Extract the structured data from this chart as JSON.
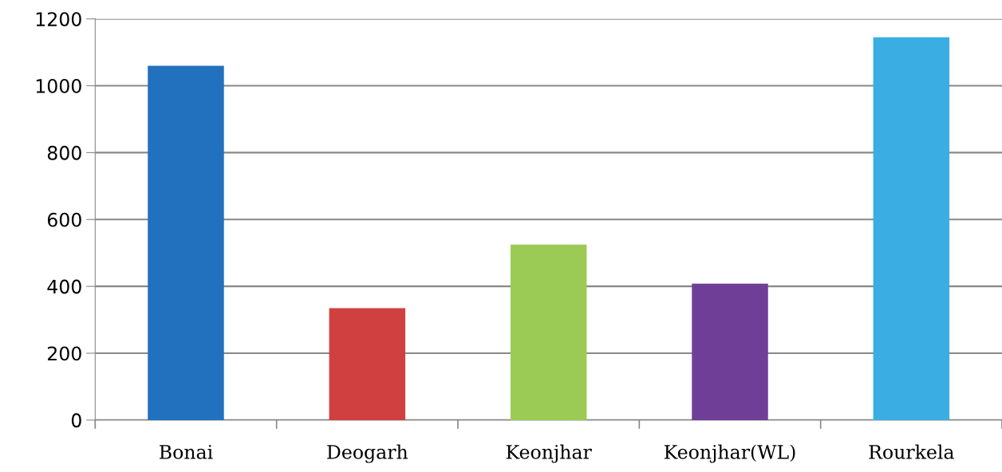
{
  "chart_data": {
    "type": "bar",
    "categories": [
      "Bonai",
      "Deogarh",
      "Keonjhar",
      "Keonjhar(WL)",
      "Rourkela"
    ],
    "values": [
      1060,
      335,
      525,
      408,
      1145
    ],
    "colors": [
      "#2271be",
      "#d04040",
      "#9bcb55",
      "#6f3f98",
      "#3aaee2"
    ],
    "ylim": [
      0,
      1200
    ],
    "yticks": [
      0,
      200,
      400,
      600,
      800,
      1000,
      1200
    ],
    "grid": "y",
    "legend": false
  }
}
